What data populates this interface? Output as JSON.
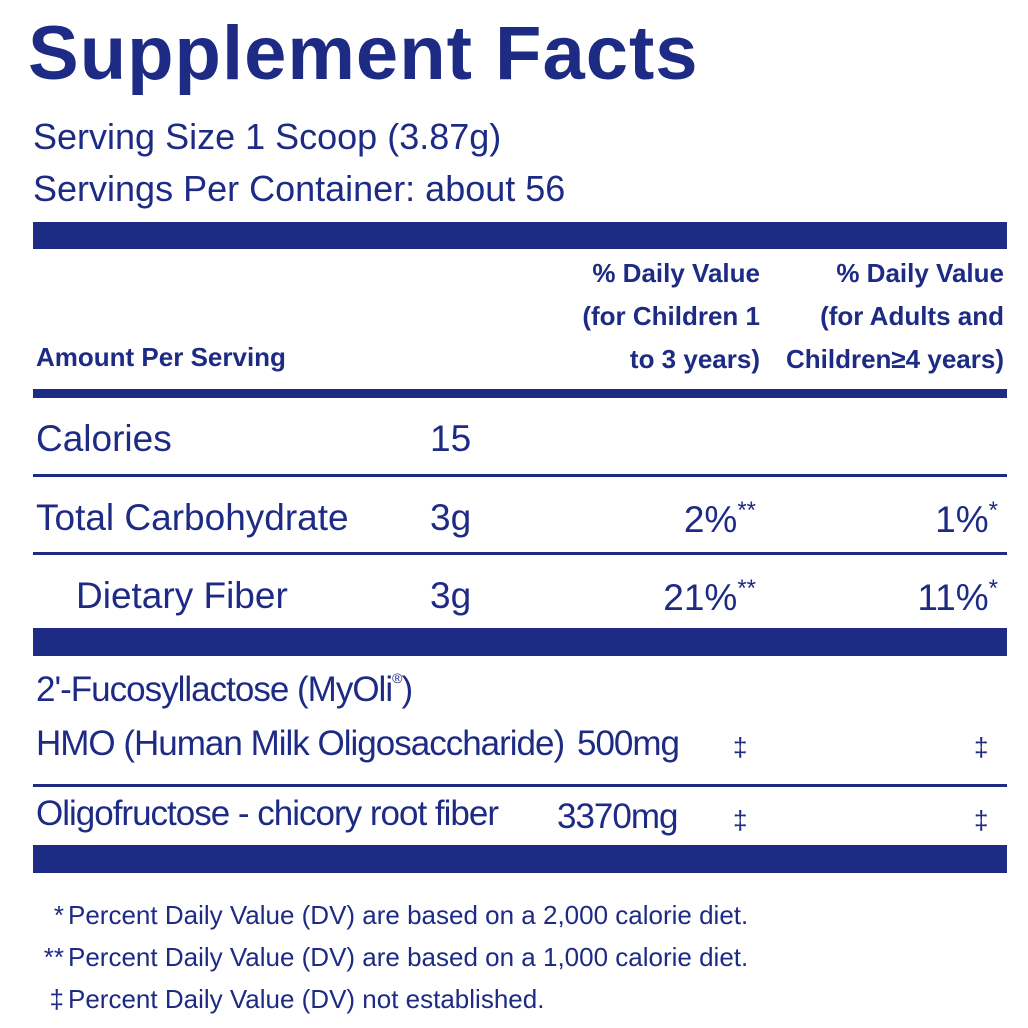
{
  "title": "Supplement Facts",
  "serving_size": "Serving Size 1 Scoop (3.87g)",
  "servings_per_container": "Servings Per Container: about 56",
  "header": {
    "amount": "Amount Per Serving",
    "dv_children": [
      "% Daily Value",
      "(for Children 1",
      "to 3 years)"
    ],
    "dv_adults": [
      "% Daily Value",
      "(for Adults and",
      "Children≥4 years)"
    ]
  },
  "rows": [
    {
      "name": "Calories",
      "amount": "15"
    },
    {
      "name": "Total Carbohydrate",
      "amount": "3g",
      "dv_children": "2%",
      "dv_children_mark": "**",
      "dv_adults": "1%",
      "dv_adults_mark": "*"
    },
    {
      "name": "Dietary Fiber",
      "amount": "3g",
      "dv_children": "21%",
      "dv_children_mark": "**",
      "dv_adults": "11%",
      "dv_adults_mark": "*"
    }
  ],
  "ingredients": [
    {
      "name": "2'-Fucosyllactose (MyOli",
      "name_sup": "®",
      "name_end": ")",
      "name_line2": "HMO (Human Milk Oligosaccharide)",
      "amount": "500mg",
      "dv_children": "‡",
      "dv_adults": "‡"
    },
    {
      "name": "Oligofructose - chicory root fiber",
      "amount": "3370mg",
      "dv_children": "‡",
      "dv_adults": "‡"
    }
  ],
  "footnotes": [
    {
      "symbol": "*",
      "text": "Percent Daily Value (DV) are based on a 2,000 calorie diet."
    },
    {
      "symbol": "**",
      "text": "Percent Daily Value (DV) are based on a 1,000 calorie diet."
    },
    {
      "symbol": "‡",
      "text": "Percent Daily Value (DV) not established."
    }
  ]
}
